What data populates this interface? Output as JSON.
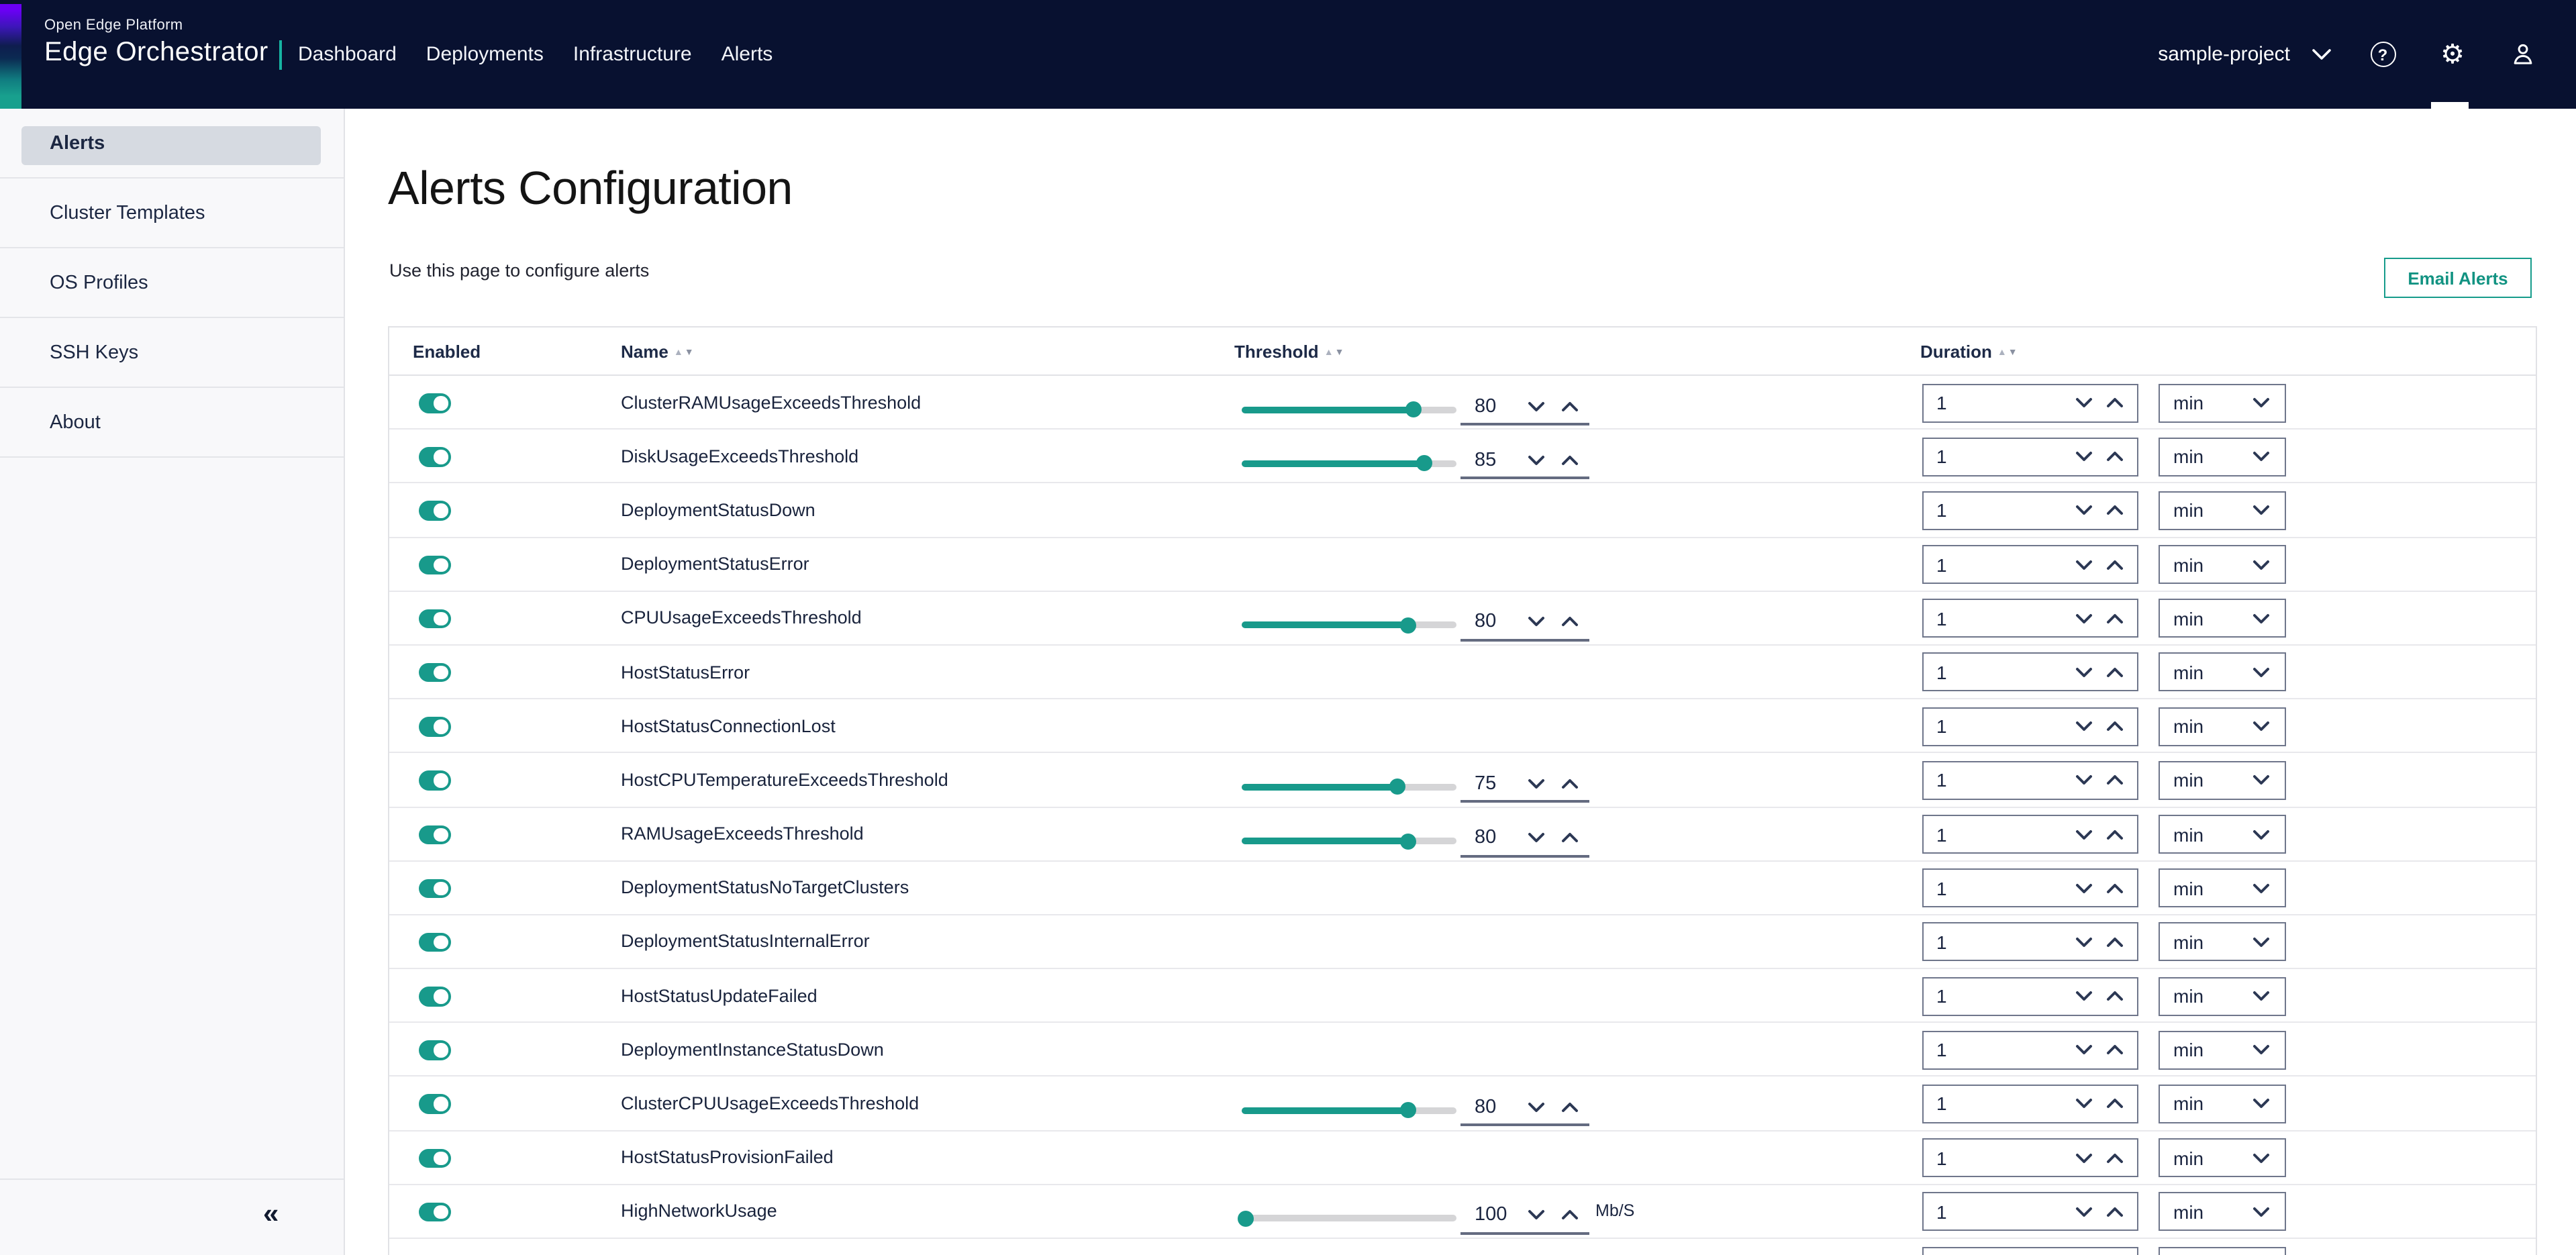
{
  "topbar": {
    "brand_line1": "Open Edge Platform",
    "brand_line2": "Edge Orchestrator",
    "nav_items": [
      {
        "label": "Dashboard"
      },
      {
        "label": "Deployments"
      },
      {
        "label": "Infrastructure"
      },
      {
        "label": "Alerts"
      }
    ],
    "project_selector": "sample-project",
    "icons": [
      "chevron-down-icon",
      "help-icon",
      "gear-icon",
      "user-icon"
    ],
    "active_icon_indicator": "gear-icon",
    "help_glyph": "?"
  },
  "sidebar": {
    "items": [
      {
        "label": "Alerts",
        "selected": true
      },
      {
        "label": "Cluster Templates",
        "selected": false
      },
      {
        "label": "OS Profiles",
        "selected": false
      },
      {
        "label": "SSH Keys",
        "selected": false
      },
      {
        "label": "About",
        "selected": false
      }
    ],
    "collapse_glyph": "«"
  },
  "page": {
    "title": "Alerts Configuration",
    "subtitle": "Use this page to configure alerts",
    "email_alerts_button": "Email Alerts"
  },
  "table": {
    "columns": [
      {
        "label": "Enabled",
        "sortable": false
      },
      {
        "label": "Name",
        "sortable": true
      },
      {
        "label": "Threshold",
        "sortable": true
      },
      {
        "label": "Duration",
        "sortable": true
      }
    ],
    "rows": [
      {
        "enabled": true,
        "name": "ClusterRAMUsageExceedsThreshold",
        "threshold": "80",
        "slider_percent": 80,
        "unit": "",
        "duration_value": "1",
        "duration_unit": "min"
      },
      {
        "enabled": true,
        "name": "DiskUsageExceedsThreshold",
        "threshold": "85",
        "slider_percent": 85,
        "unit": "",
        "duration_value": "1",
        "duration_unit": "min"
      },
      {
        "enabled": true,
        "name": "DeploymentStatusDown",
        "threshold": null,
        "slider_percent": 0,
        "unit": "",
        "duration_value": "1",
        "duration_unit": "min"
      },
      {
        "enabled": true,
        "name": "DeploymentStatusError",
        "threshold": null,
        "slider_percent": 0,
        "unit": "",
        "duration_value": "1",
        "duration_unit": "min"
      },
      {
        "enabled": true,
        "name": "CPUUsageExceedsThreshold",
        "threshold": "80",
        "slider_percent": 78,
        "unit": "",
        "duration_value": "1",
        "duration_unit": "min"
      },
      {
        "enabled": true,
        "name": "HostStatusError",
        "threshold": null,
        "slider_percent": 0,
        "unit": "",
        "duration_value": "1",
        "duration_unit": "min"
      },
      {
        "enabled": true,
        "name": "HostStatusConnectionLost",
        "threshold": null,
        "slider_percent": 0,
        "unit": "",
        "duration_value": "1",
        "duration_unit": "min"
      },
      {
        "enabled": true,
        "name": "HostCPUTemperatureExceedsThreshold",
        "threshold": "75",
        "slider_percent": 73,
        "unit": "",
        "duration_value": "1",
        "duration_unit": "min"
      },
      {
        "enabled": true,
        "name": "RAMUsageExceedsThreshold",
        "threshold": "80",
        "slider_percent": 78,
        "unit": "",
        "duration_value": "1",
        "duration_unit": "min"
      },
      {
        "enabled": true,
        "name": "DeploymentStatusNoTargetClusters",
        "threshold": null,
        "slider_percent": 0,
        "unit": "",
        "duration_value": "1",
        "duration_unit": "min"
      },
      {
        "enabled": true,
        "name": "DeploymentStatusInternalError",
        "threshold": null,
        "slider_percent": 0,
        "unit": "",
        "duration_value": "1",
        "duration_unit": "min"
      },
      {
        "enabled": true,
        "name": "HostStatusUpdateFailed",
        "threshold": null,
        "slider_percent": 0,
        "unit": "",
        "duration_value": "1",
        "duration_unit": "min"
      },
      {
        "enabled": true,
        "name": "DeploymentInstanceStatusDown",
        "threshold": null,
        "slider_percent": 0,
        "unit": "",
        "duration_value": "1",
        "duration_unit": "min"
      },
      {
        "enabled": true,
        "name": "ClusterCPUUsageExceedsThreshold",
        "threshold": "80",
        "slider_percent": 78,
        "unit": "",
        "duration_value": "1",
        "duration_unit": "min"
      },
      {
        "enabled": true,
        "name": "HostStatusProvisionFailed",
        "threshold": null,
        "slider_percent": 0,
        "unit": "",
        "duration_value": "1",
        "duration_unit": "min"
      },
      {
        "enabled": true,
        "name": "HighNetworkUsage",
        "threshold": "100",
        "slider_percent": 2,
        "unit": "Mb/S",
        "duration_value": "1",
        "duration_unit": "min"
      }
    ],
    "partial_row_visible": true
  },
  "colors": {
    "accent_teal": "#189a8b",
    "email_button_teal": "#169c8b",
    "topbar_navy": "#081130",
    "text_navy": "#19233c",
    "slider_track_gray": "#d5d5d7",
    "input_underline_slate": "#646b80",
    "box_border_slate": "#6f768b",
    "sidebar_selected_bg": "#d6dae1"
  }
}
